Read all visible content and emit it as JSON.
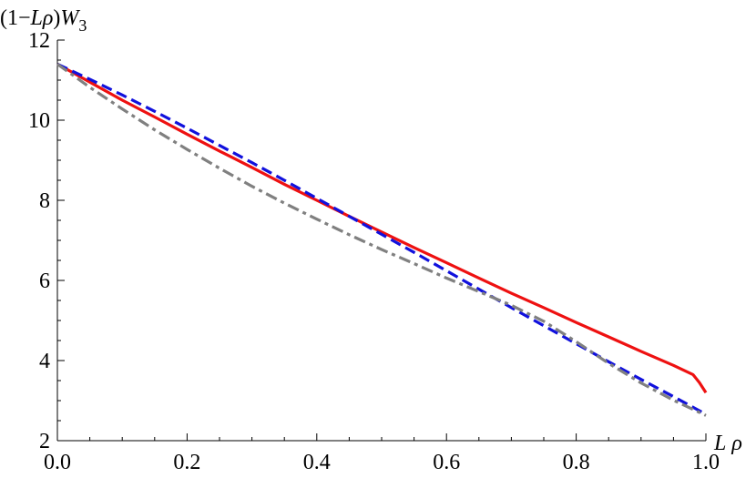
{
  "chart_data": {
    "type": "line",
    "title": "",
    "xlabel_parts": [
      "L",
      " ",
      "ρ"
    ],
    "ylabel_parts": [
      "(1−",
      "L",
      "ρ",
      ")",
      "W",
      "3"
    ],
    "xlim": [
      0.0,
      1.0
    ],
    "ylim": [
      2,
      12
    ],
    "x_ticks": [
      0.0,
      0.2,
      0.4,
      0.6,
      0.8,
      1.0
    ],
    "x_tick_labels": [
      "0.0",
      "0.2",
      "0.4",
      "0.6",
      "0.8",
      "1.0"
    ],
    "y_ticks": [
      2,
      4,
      6,
      8,
      10,
      12
    ],
    "y_tick_labels": [
      "2",
      "4",
      "6",
      "8",
      "10",
      "12"
    ],
    "grid": false,
    "legend": "none",
    "series": [
      {
        "color": "#ee1111",
        "style": "solid",
        "x": [
          0.0,
          0.05,
          0.1,
          0.15,
          0.2,
          0.25,
          0.3,
          0.35,
          0.4,
          0.45,
          0.5,
          0.55,
          0.6,
          0.65,
          0.7,
          0.75,
          0.8,
          0.85,
          0.9,
          0.95,
          0.98,
          0.99,
          1.0
        ],
        "values": [
          11.4,
          10.95,
          10.5,
          10.08,
          9.65,
          9.23,
          8.82,
          8.4,
          8.0,
          7.6,
          7.21,
          6.82,
          6.44,
          6.06,
          5.68,
          5.32,
          4.95,
          4.59,
          4.23,
          3.88,
          3.65,
          3.45,
          3.2
        ]
      },
      {
        "color": "#1111dd",
        "style": "dashed",
        "x": [
          0.0,
          0.05,
          0.1,
          0.15,
          0.2,
          0.25,
          0.3,
          0.35,
          0.4,
          0.45,
          0.5,
          0.55,
          0.6,
          0.65,
          0.7,
          0.75,
          0.8,
          0.85,
          0.9,
          0.95,
          1.0
        ],
        "values": [
          11.4,
          11.02,
          10.63,
          10.22,
          9.8,
          9.37,
          8.94,
          8.5,
          8.05,
          7.6,
          7.15,
          6.7,
          6.24,
          5.78,
          5.32,
          4.87,
          4.42,
          3.97,
          3.53,
          3.1,
          2.66
        ]
      },
      {
        "color": "#808080",
        "style": "dashdot",
        "x": [
          0.0,
          0.05,
          0.1,
          0.15,
          0.2,
          0.25,
          0.3,
          0.35,
          0.4,
          0.45,
          0.5,
          0.55,
          0.6,
          0.65,
          0.7,
          0.75,
          0.8,
          0.85,
          0.9,
          0.95,
          1.0
        ],
        "values": [
          11.4,
          10.82,
          10.28,
          9.76,
          9.27,
          8.8,
          8.35,
          7.93,
          7.53,
          7.14,
          6.77,
          6.42,
          6.06,
          5.72,
          5.38,
          4.98,
          4.47,
          3.93,
          3.44,
          3.01,
          2.63
        ]
      }
    ]
  }
}
